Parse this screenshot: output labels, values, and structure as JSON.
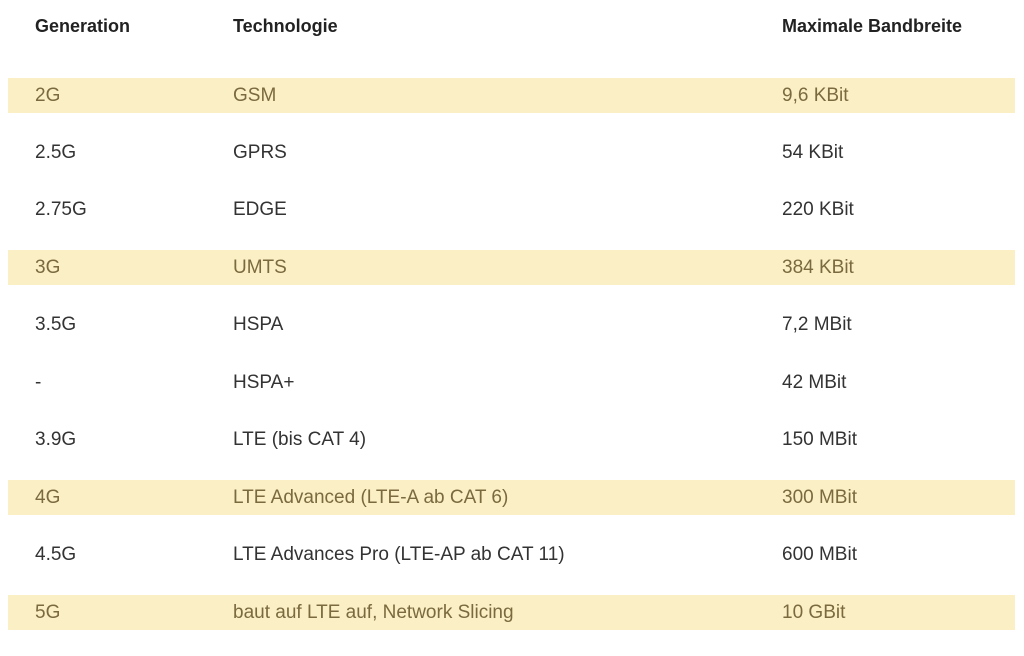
{
  "columns": {
    "generation": "Generation",
    "technology": "Technologie",
    "bandwidth": "Maximale Bandbreite"
  },
  "rows": [
    {
      "generation": "2G",
      "technology": "GSM",
      "bandwidth": "9,6 KBit",
      "highlighted": true
    },
    {
      "generation": "2.5G",
      "technology": "GPRS",
      "bandwidth": "54 KBit",
      "highlighted": false
    },
    {
      "generation": "2.75G",
      "technology": "EDGE",
      "bandwidth": "220 KBit",
      "highlighted": false
    },
    {
      "generation": "3G",
      "technology": "UMTS",
      "bandwidth": "384 KBit",
      "highlighted": true
    },
    {
      "generation": "3.5G",
      "technology": "HSPA",
      "bandwidth": "7,2 MBit",
      "highlighted": false
    },
    {
      "generation": "-",
      "technology": "HSPA+",
      "bandwidth": "42 MBit",
      "highlighted": false
    },
    {
      "generation": "3.9G",
      "technology": "LTE (bis CAT 4)",
      "bandwidth": "150 MBit",
      "highlighted": false
    },
    {
      "generation": "4G",
      "technology": "LTE Advanced (LTE-A ab CAT 6)",
      "bandwidth": "300 MBit",
      "highlighted": true
    },
    {
      "generation": "4.5G",
      "technology": "LTE Advances Pro (LTE-AP ab CAT 11)",
      "bandwidth": "600 MBit",
      "highlighted": false
    },
    {
      "generation": "5G",
      "technology": "baut auf LTE auf, Network Slicing",
      "bandwidth": "10 GBit",
      "highlighted": true
    }
  ],
  "colors": {
    "highlight_background": "#fbefc5",
    "highlight_text": "#7b6a3f",
    "text": "#333333",
    "header_text": "#222222"
  }
}
